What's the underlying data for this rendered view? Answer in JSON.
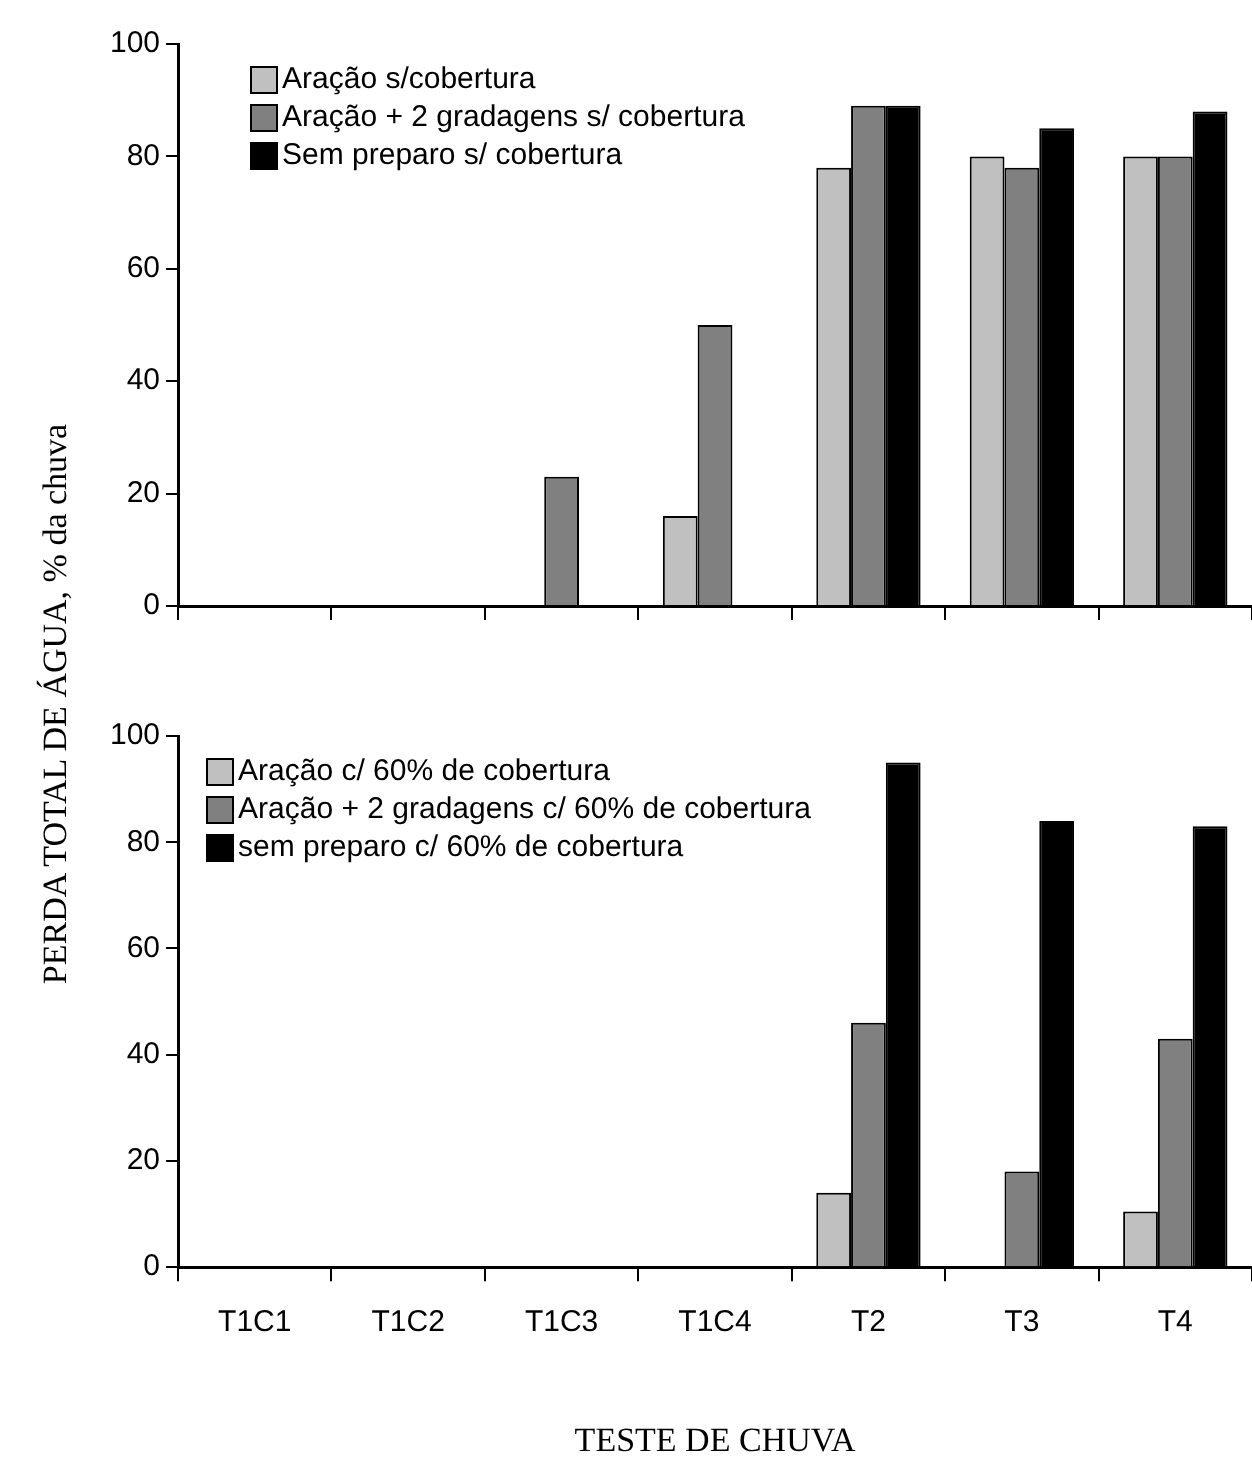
{
  "chart_data": [
    {
      "type": "bar",
      "ylabel": "PERDA TOTAL DE ÁGUA, % da chuva",
      "categories": [
        null,
        null,
        null,
        null,
        null,
        null,
        null
      ],
      "tick_labels": "y",
      "legend": "top left",
      "ylim": [
        0,
        100
      ],
      "yticks": [
        0,
        20,
        40,
        60,
        80,
        100
      ],
      "series": [
        {
          "name": "Aração s/cobertura",
          "color": "#c0c0c0",
          "values": [
            0,
            0,
            0,
            16,
            78,
            80,
            80
          ]
        },
        {
          "name": "Aração + 2 gradagens s/ cobertura",
          "color": "#808080",
          "values": [
            0,
            0,
            23,
            50,
            89,
            78,
            80
          ]
        },
        {
          "name": "Sem preparo s/ cobertura",
          "color": "#000000",
          "values": [
            0,
            0,
            0,
            0,
            89,
            85,
            88
          ]
        }
      ]
    },
    {
      "type": "bar",
      "xlabel": "TESTE DE CHUVA",
      "categories": [
        "T1C1",
        "T1C2",
        "T1C3",
        "T1C4",
        "T2",
        "T3",
        "T4"
      ],
      "legend": "top left",
      "ylim": [
        0,
        100
      ],
      "yticks": [
        0,
        20,
        40,
        60,
        80,
        100
      ],
      "series": [
        {
          "name": "Aração c/ 60% de cobertura",
          "color": "#c0c0c0",
          "values": [
            0,
            0,
            0,
            0,
            14,
            0,
            10.5
          ]
        },
        {
          "name": "Aração + 2 gradagens c/ 60% de cobertura",
          "color": "#808080",
          "values": [
            0,
            0,
            0,
            0,
            46,
            18,
            43
          ]
        },
        {
          "name": "sem preparo c/ 60% de cobertura",
          "color": "#000000",
          "values": [
            0,
            0,
            0,
            0,
            95,
            84,
            83
          ]
        }
      ]
    }
  ]
}
